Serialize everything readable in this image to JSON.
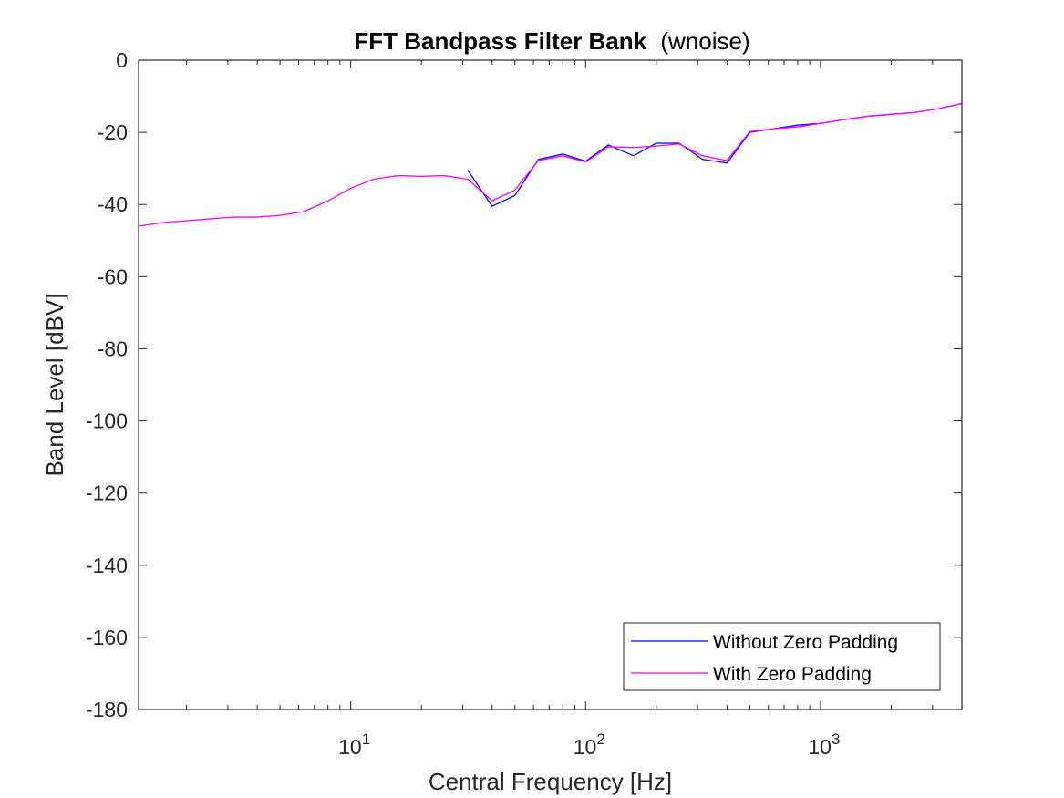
{
  "chart_data": {
    "type": "line",
    "title_bold": "FFT Bandpass Filter Bank",
    "title_normal": "(wnoise)",
    "xlabel": "Central Frequency [Hz]",
    "ylabel": "Band Level [dBV]",
    "xscale": "log",
    "xlim": [
      1.25,
      4000
    ],
    "ylim": [
      -180,
      0
    ],
    "yticks": [
      0,
      -20,
      -40,
      -60,
      -80,
      -100,
      -120,
      -140,
      -160,
      -180
    ],
    "ytick_labels": [
      "0",
      "-20",
      "-40",
      "-60",
      "-80",
      "-100",
      "-120",
      "-140",
      "-160",
      "-180"
    ],
    "xticks_major": [
      10,
      100,
      1000
    ],
    "xtick_labels": [
      {
        "base": "10",
        "exp": "1"
      },
      {
        "base": "10",
        "exp": "2"
      },
      {
        "base": "10",
        "exp": "3"
      }
    ],
    "grid": false,
    "legend_position": "bottom-right",
    "series": [
      {
        "name": "Without Zero Padding",
        "color": "#0000ff",
        "x": [
          31.5,
          40,
          50,
          63,
          80,
          100,
          125,
          160,
          200,
          250,
          315,
          400,
          500,
          630,
          800,
          1000,
          1250,
          1600,
          2000,
          2500,
          3150,
          4000
        ],
        "y": [
          -30.5,
          -40.5,
          -37.5,
          -27.5,
          -26,
          -28,
          -23.5,
          -26.5,
          -23,
          -23,
          -27.5,
          -28.5,
          -20,
          -19,
          -18,
          -17.5,
          -16.5,
          -15.5,
          -15,
          -14.5,
          -13.5,
          -12
        ]
      },
      {
        "name": "With Zero Padding",
        "color": "#ff00ff",
        "x": [
          1.25,
          1.6,
          2,
          2.5,
          3.15,
          4,
          5,
          6.3,
          8,
          10,
          12.5,
          16,
          20,
          25,
          31.5,
          40,
          50,
          63,
          80,
          100,
          125,
          160,
          200,
          250,
          315,
          400,
          500,
          630,
          800,
          1000,
          1250,
          1600,
          2000,
          2500,
          3150,
          4000
        ],
        "y": [
          -46,
          -45,
          -44.5,
          -44,
          -43.5,
          -43.5,
          -43,
          -42,
          -39,
          -35.5,
          -33,
          -32,
          -32.2,
          -32,
          -33,
          -39,
          -36,
          -27.8,
          -26.5,
          -28.2,
          -24,
          -24.2,
          -23.8,
          -23.2,
          -26.5,
          -27.8,
          -19.8,
          -19,
          -18.5,
          -17.5,
          -16.5,
          -15.5,
          -15,
          -14.5,
          -13.5,
          -12
        ]
      }
    ]
  }
}
